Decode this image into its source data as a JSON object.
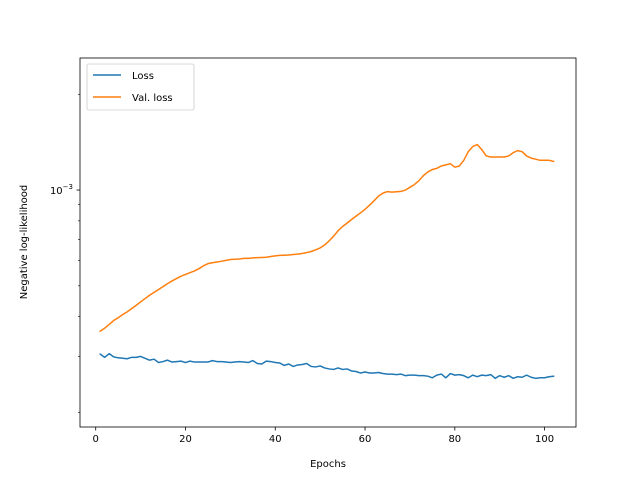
{
  "chart_data": {
    "type": "line",
    "xlabel": "Epochs",
    "ylabel": "Negative log-likelihood",
    "xlim": [
      -3.5,
      107
    ],
    "ylim": [
      0.00018,
      0.0026
    ],
    "yscale": "log",
    "x_ticks": [
      0,
      20,
      40,
      60,
      80,
      100
    ],
    "y_major_tick": {
      "value": 0.001,
      "label_base": "10",
      "label_exp": "−3"
    },
    "grid": false,
    "legend": {
      "position": "top-left"
    },
    "series": [
      {
        "name": "Loss",
        "color": "#1f77b4",
        "x": [
          1,
          2,
          3,
          4,
          5,
          6,
          7,
          8,
          9,
          10,
          11,
          12,
          13,
          14,
          15,
          16,
          17,
          18,
          19,
          20,
          21,
          22,
          23,
          24,
          25,
          26,
          27,
          28,
          29,
          30,
          31,
          32,
          33,
          34,
          35,
          36,
          37,
          38,
          39,
          40,
          41,
          42,
          43,
          44,
          45,
          46,
          47,
          48,
          49,
          50,
          51,
          52,
          53,
          54,
          55,
          56,
          57,
          58,
          59,
          60,
          61,
          62,
          63,
          64,
          65,
          66,
          67,
          68,
          69,
          70,
          71,
          72,
          73,
          74,
          75,
          76,
          77,
          78,
          79,
          80,
          81,
          82,
          83,
          84,
          85,
          86,
          87,
          88,
          89,
          90,
          91,
          92,
          93,
          94,
          95,
          96,
          97,
          98,
          99,
          100,
          101,
          102
        ],
        "values": [
          0.000305,
          0.000298,
          0.000306,
          0.000299,
          0.000297,
          0.000296,
          0.000295,
          0.000298,
          0.000298,
          0.0003,
          0.000296,
          0.000292,
          0.000294,
          0.000287,
          0.000289,
          0.000292,
          0.000288,
          0.000289,
          0.00029,
          0.000287,
          0.00029,
          0.000288,
          0.000288,
          0.000288,
          0.000288,
          0.000291,
          0.000289,
          0.000289,
          0.000288,
          0.000287,
          0.000288,
          0.000289,
          0.000288,
          0.000287,
          0.000291,
          0.000285,
          0.000284,
          0.00029,
          0.000289,
          0.000287,
          0.000286,
          0.000281,
          0.000284,
          0.000279,
          0.000282,
          0.000283,
          0.000285,
          0.000279,
          0.000278,
          0.00028,
          0.000276,
          0.000274,
          0.000273,
          0.000276,
          0.000273,
          0.000274,
          0.00027,
          0.000269,
          0.000266,
          0.000268,
          0.000266,
          0.000266,
          0.000267,
          0.000265,
          0.000264,
          0.000264,
          0.000263,
          0.000264,
          0.000261,
          0.000262,
          0.000262,
          0.000261,
          0.000261,
          0.00026,
          0.000257,
          0.000262,
          0.000264,
          0.000257,
          0.000265,
          0.000262,
          0.000263,
          0.000261,
          0.000257,
          0.000262,
          0.000259,
          0.000262,
          0.000261,
          0.000263,
          0.000256,
          0.000261,
          0.000258,
          0.000261,
          0.000256,
          0.000259,
          0.000258,
          0.000262,
          0.000258,
          0.000256,
          0.000257,
          0.000257,
          0.000259,
          0.00026
        ]
      },
      {
        "name": "Val. loss",
        "color": "#ff7f0e",
        "x": [
          1,
          2,
          3,
          4,
          5,
          6,
          7,
          8,
          9,
          10,
          11,
          12,
          13,
          14,
          15,
          16,
          17,
          18,
          19,
          20,
          21,
          22,
          23,
          24,
          25,
          26,
          27,
          28,
          29,
          30,
          31,
          32,
          33,
          34,
          35,
          36,
          37,
          38,
          39,
          40,
          41,
          42,
          43,
          44,
          45,
          46,
          47,
          48,
          49,
          50,
          51,
          52,
          53,
          54,
          55,
          56,
          57,
          58,
          59,
          60,
          61,
          62,
          63,
          64,
          65,
          66,
          67,
          68,
          69,
          70,
          71,
          72,
          73,
          74,
          75,
          76,
          77,
          78,
          79,
          80,
          81,
          82,
          83,
          84,
          85,
          86,
          87,
          88,
          89,
          90,
          91,
          92,
          93,
          94,
          95,
          96,
          97,
          98,
          99,
          100,
          101,
          102
        ],
        "values": [
          0.00036,
          0.000368,
          0.000378,
          0.000389,
          0.000397,
          0.000406,
          0.000414,
          0.000424,
          0.000434,
          0.000445,
          0.000456,
          0.000467,
          0.000477,
          0.000487,
          0.000497,
          0.000508,
          0.000518,
          0.000527,
          0.000536,
          0.000543,
          0.00055,
          0.000557,
          0.000566,
          0.000578,
          0.000587,
          0.000591,
          0.000594,
          0.000597,
          0.000601,
          0.000605,
          0.000606,
          0.000607,
          0.00061,
          0.00061,
          0.000612,
          0.000613,
          0.000614,
          0.000615,
          0.000618,
          0.000621,
          0.000623,
          0.000624,
          0.000625,
          0.000627,
          0.000629,
          0.000632,
          0.000636,
          0.000641,
          0.000649,
          0.000658,
          0.000672,
          0.000692,
          0.000716,
          0.000745,
          0.000768,
          0.000787,
          0.000808,
          0.000828,
          0.000848,
          0.00087,
          0.000896,
          0.000925,
          0.000957,
          0.000978,
          0.000989,
          0.000985,
          0.000988,
          0.00099,
          0.001,
          0.00102,
          0.00104,
          0.00107,
          0.00111,
          0.00114,
          0.00116,
          0.00117,
          0.00119,
          0.0012,
          0.00121,
          0.00118,
          0.00119,
          0.00124,
          0.00132,
          0.00137,
          0.00139,
          0.00134,
          0.00128,
          0.00127,
          0.00127,
          0.00127,
          0.00127,
          0.00128,
          0.00131,
          0.00133,
          0.00132,
          0.00128,
          0.00126,
          0.00125,
          0.00124,
          0.00124,
          0.00124,
          0.00123
        ]
      }
    ]
  }
}
